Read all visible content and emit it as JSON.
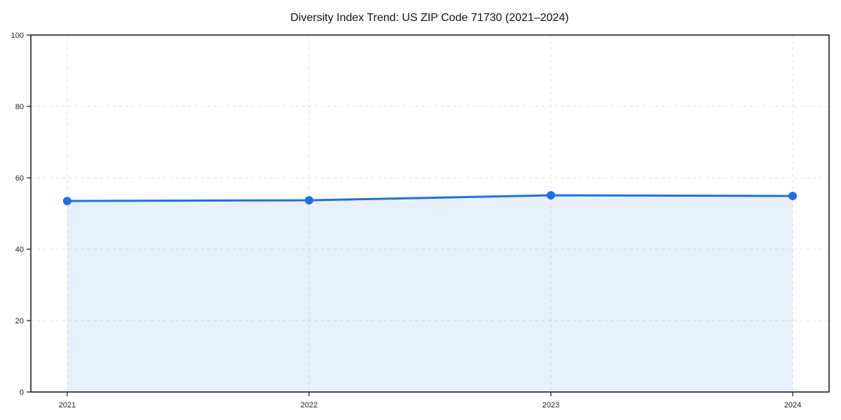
{
  "chart_data": {
    "type": "line",
    "title": "Diversity Index Trend: US ZIP Code 71730 (2021–2024)",
    "x": [
      "2021",
      "2022",
      "2023",
      "2024"
    ],
    "series": [
      {
        "name": "Diversity Index",
        "values": [
          53.5,
          53.7,
          55.1,
          54.9
        ]
      }
    ],
    "xlabel": "",
    "ylabel": "",
    "ylim": [
      0,
      100
    ],
    "yticks": [
      0,
      20,
      40,
      60,
      80,
      100
    ],
    "grid": true,
    "grid_style": "dashed",
    "legend": "none",
    "area": true,
    "marker": "circle",
    "colors": {
      "line": "#1f6fe0",
      "marker": "#1f6fe0",
      "area_fill": "rgba(31,111,224,0.10)",
      "frame": "#111111",
      "gridline": "#e1e1e1",
      "background": "#ffffff"
    }
  }
}
